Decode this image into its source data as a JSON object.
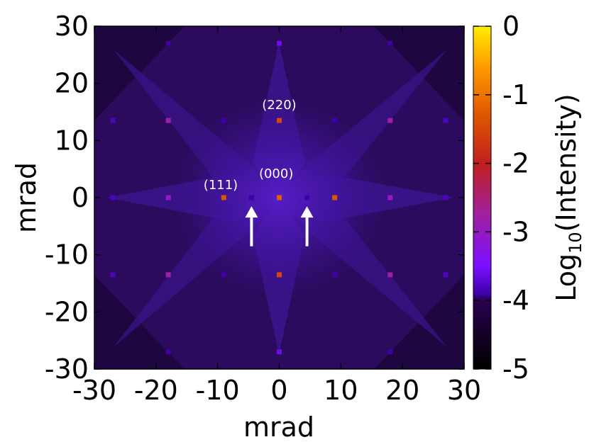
{
  "chart_data": {
    "type": "heatmap",
    "title": "",
    "xlabel": "mrad",
    "ylabel": "mrad",
    "xlim": [
      -30,
      30
    ],
    "ylim": [
      -30,
      30
    ],
    "xticks": [
      "-30",
      "-20",
      "-10",
      "0",
      "10",
      "20",
      "30"
    ],
    "yticks": [
      "30",
      "20",
      "10",
      "0",
      "-10",
      "-20",
      "-30"
    ],
    "colorbar": {
      "label_prefix": "Log",
      "label_subscript": "10",
      "label_suffix": "(Intensity)",
      "range": [
        -5,
        0
      ],
      "ticks": [
        "0",
        "-1",
        "-2",
        "-3",
        "-4",
        "-5"
      ]
    },
    "background_log_intensity": -4.4,
    "spots": [
      {
        "x": 0,
        "y": 0,
        "v": -1.2
      },
      {
        "x": -9,
        "y": 0,
        "v": -1.3
      },
      {
        "x": 9,
        "y": 0,
        "v": -1.3
      },
      {
        "x": -4.5,
        "y": 0,
        "v": -3.9
      },
      {
        "x": 4.5,
        "y": 0,
        "v": -3.9
      },
      {
        "x": 0,
        "y": 13.5,
        "v": -1.5
      },
      {
        "x": 0,
        "y": -13.5,
        "v": -1.5
      },
      {
        "x": -18,
        "y": 13.5,
        "v": -2.8
      },
      {
        "x": 18,
        "y": 13.5,
        "v": -2.8
      },
      {
        "x": -18,
        "y": -13.5,
        "v": -2.8
      },
      {
        "x": 18,
        "y": -13.5,
        "v": -2.8
      },
      {
        "x": -18,
        "y": 0,
        "v": -3.0
      },
      {
        "x": 18,
        "y": 0,
        "v": -3.0
      },
      {
        "x": -9,
        "y": 13.5,
        "v": -3.9
      },
      {
        "x": 9,
        "y": 13.5,
        "v": -3.9
      },
      {
        "x": -9,
        "y": -13.5,
        "v": -3.9
      },
      {
        "x": 9,
        "y": -13.5,
        "v": -3.9
      },
      {
        "x": -27,
        "y": 13.5,
        "v": -3.8
      },
      {
        "x": 27,
        "y": 13.5,
        "v": -3.8
      },
      {
        "x": -27,
        "y": -13.5,
        "v": -3.8
      },
      {
        "x": 27,
        "y": -13.5,
        "v": -3.8
      },
      {
        "x": -27,
        "y": 0,
        "v": -3.8
      },
      {
        "x": 27,
        "y": 0,
        "v": -3.8
      },
      {
        "x": 0,
        "y": 27,
        "v": -3.6
      },
      {
        "x": 0,
        "y": -27,
        "v": -3.6
      },
      {
        "x": -18,
        "y": 27,
        "v": -3.9
      },
      {
        "x": 18,
        "y": 27,
        "v": -3.9
      },
      {
        "x": -18,
        "y": -27,
        "v": -3.9
      },
      {
        "x": 18,
        "y": -27,
        "v": -3.9
      }
    ],
    "annotations": [
      {
        "text": "(220)",
        "x": 0,
        "y": 15.5
      },
      {
        "text": "(111)",
        "x": -9.5,
        "y": 1.5
      },
      {
        "text": "(000)",
        "x": -0.5,
        "y": 3.5
      }
    ],
    "arrows": [
      {
        "x": -4.5,
        "y_from": -8.5,
        "y_to": -1.5
      },
      {
        "x": 4.5,
        "y_from": -8.5,
        "y_to": -1.5
      }
    ]
  }
}
